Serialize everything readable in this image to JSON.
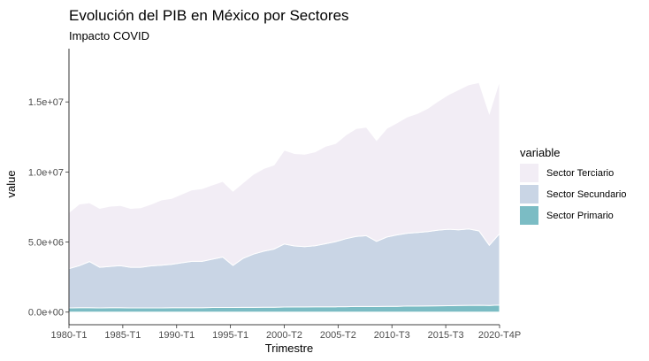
{
  "chart_data": {
    "type": "area",
    "title": "Evolución del PIB en México por Sectores",
    "subtitle": "Impacto COVID",
    "xlabel": "Trimestre",
    "ylabel": "value",
    "ylim": [
      -900000,
      18800000
    ],
    "stacked": true,
    "x_ticks": [
      "1980-T1",
      "1985-T1",
      "1990-T1",
      "1995-T1",
      "2000-T2",
      "2005-T2",
      "2010-T3",
      "2015-T3",
      "2020-T4P"
    ],
    "y_ticks": [
      {
        "value": 0,
        "label": "0.0e+00"
      },
      {
        "value": 5000000,
        "label": "5.0e+06"
      },
      {
        "value": 10000000,
        "label": "1.0e+07"
      },
      {
        "value": 15000000,
        "label": "1.5e+07"
      }
    ],
    "legend": {
      "title": "variable",
      "position": "right",
      "entries": [
        "Sector Terciario",
        "Sector Secundario",
        "Sector Primario"
      ]
    },
    "colors": {
      "Sector Terciario": "#f2edf5",
      "Sector Secundario": "#c9d5e5",
      "Sector Primario": "#7bbcc4"
    },
    "x": [
      "1980-T1",
      "1981-T1",
      "1982-T1",
      "1983-T1",
      "1984-T1",
      "1985-T1",
      "1986-T1",
      "1987-T1",
      "1988-T1",
      "1989-T1",
      "1990-T1",
      "1991-T1",
      "1992-T1",
      "1993-T1",
      "1994-T1",
      "1994-T4",
      "1995-T2",
      "1996-T1",
      "1997-T1",
      "1998-T1",
      "1999-T1",
      "2000-T2",
      "2001-T2",
      "2002-T2",
      "2003-T2",
      "2004-T2",
      "2005-T2",
      "2006-T2",
      "2007-T2",
      "2008-T2",
      "2009-T2",
      "2010-T3",
      "2011-T3",
      "2012-T3",
      "2013-T3",
      "2014-T3",
      "2015-T3",
      "2016-T3",
      "2017-T3",
      "2018-T3",
      "2019-T4",
      "2020-T2",
      "2020-T4P"
    ],
    "series": [
      {
        "name": "Sector Primario",
        "values": [
          300000,
          310000,
          310000,
          300000,
          310000,
          310000,
          300000,
          300000,
          300000,
          300000,
          310000,
          320000,
          320000,
          320000,
          330000,
          330000,
          330000,
          340000,
          340000,
          350000,
          350000,
          360000,
          370000,
          370000,
          380000,
          380000,
          380000,
          390000,
          400000,
          400000,
          400000,
          410000,
          410000,
          430000,
          430000,
          440000,
          450000,
          460000,
          470000,
          480000,
          490000,
          470000,
          500000
        ]
      },
      {
        "name": "Sector Secundario",
        "values": [
          2800000,
          3000000,
          3300000,
          2900000,
          2950000,
          3000000,
          2900000,
          2900000,
          3000000,
          3050000,
          3100000,
          3200000,
          3300000,
          3300000,
          3450000,
          3600000,
          3000000,
          3500000,
          3800000,
          4000000,
          4150000,
          4500000,
          4350000,
          4300000,
          4350000,
          4500000,
          4650000,
          4850000,
          5000000,
          5050000,
          4650000,
          4950000,
          5100000,
          5200000,
          5250000,
          5300000,
          5400000,
          5450000,
          5400000,
          5450000,
          5300000,
          4300000,
          5100000
        ]
      },
      {
        "name": "Sector Terciario",
        "values": [
          4000000,
          4400000,
          4200000,
          4200000,
          4300000,
          4300000,
          4200000,
          4250000,
          4400000,
          4650000,
          4700000,
          4900000,
          5100000,
          5200000,
          5300000,
          5400000,
          5300000,
          5400000,
          5700000,
          5900000,
          6000000,
          6700000,
          6600000,
          6600000,
          6700000,
          6950000,
          7000000,
          7400000,
          7700000,
          7750000,
          7200000,
          7750000,
          8000000,
          8300000,
          8500000,
          8800000,
          9200000,
          9600000,
          10000000,
          10300000,
          10600000,
          9400000,
          10900000
        ]
      }
    ]
  }
}
